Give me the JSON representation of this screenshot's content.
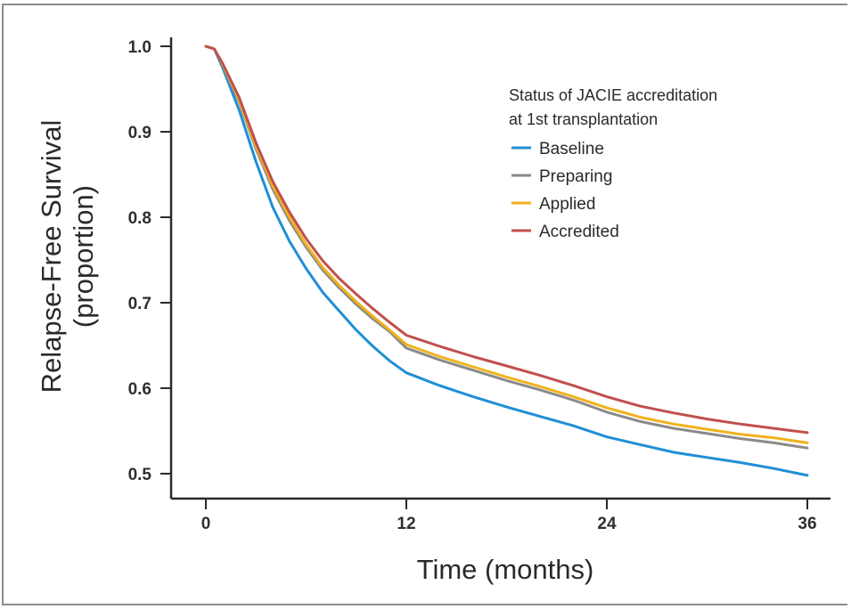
{
  "chart_data": {
    "type": "line",
    "xlabel": "Time (months)",
    "ylabel_lines": [
      "Relapse-Free Survival",
      "(proportion)"
    ],
    "x_ticks": [
      0,
      12,
      24,
      36
    ],
    "y_ticks": [
      "0.5",
      "0.6",
      "0.7",
      "0.8",
      "0.9",
      "1.0"
    ],
    "xlim": [
      0,
      36
    ],
    "ylim": [
      0.5,
      1.0
    ],
    "grid": false,
    "legend": {
      "title_lines": [
        "Status of JACIE accreditation",
        "at 1st transplantation"
      ],
      "placement": "top-right"
    },
    "x": [
      0,
      0.5,
      1,
      2,
      3,
      4,
      5,
      6,
      7,
      8,
      9,
      10,
      11,
      12,
      14,
      16,
      18,
      20,
      22,
      24,
      26,
      28,
      30,
      32,
      34,
      36
    ],
    "series": [
      {
        "name": "Baseline",
        "color": "#1f8fd6",
        "values": [
          1.0,
          0.997,
          0.975,
          0.925,
          0.865,
          0.812,
          0.772,
          0.74,
          0.712,
          0.69,
          0.668,
          0.649,
          0.632,
          0.618,
          0.603,
          0.59,
          0.578,
          0.567,
          0.556,
          0.543,
          0.534,
          0.525,
          0.519,
          0.513,
          0.506,
          0.498
        ]
      },
      {
        "name": "Preparing",
        "color": "#8a8a8a",
        "values": [
          1.0,
          0.997,
          0.978,
          0.935,
          0.88,
          0.833,
          0.796,
          0.765,
          0.738,
          0.717,
          0.698,
          0.681,
          0.666,
          0.647,
          0.633,
          0.621,
          0.609,
          0.598,
          0.586,
          0.572,
          0.561,
          0.553,
          0.547,
          0.541,
          0.536,
          0.53
        ]
      },
      {
        "name": "Applied",
        "color": "#f0b21a",
        "values": [
          1.0,
          0.997,
          0.979,
          0.937,
          0.883,
          0.837,
          0.8,
          0.768,
          0.741,
          0.72,
          0.701,
          0.684,
          0.668,
          0.651,
          0.637,
          0.625,
          0.613,
          0.602,
          0.59,
          0.577,
          0.566,
          0.558,
          0.552,
          0.546,
          0.542,
          0.536
        ]
      },
      {
        "name": "Accredited",
        "color": "#c0504d",
        "values": [
          1.0,
          0.997,
          0.98,
          0.94,
          0.887,
          0.842,
          0.806,
          0.775,
          0.749,
          0.728,
          0.71,
          0.693,
          0.677,
          0.662,
          0.649,
          0.637,
          0.626,
          0.615,
          0.603,
          0.59,
          0.579,
          0.571,
          0.564,
          0.558,
          0.553,
          0.548
        ]
      }
    ]
  }
}
